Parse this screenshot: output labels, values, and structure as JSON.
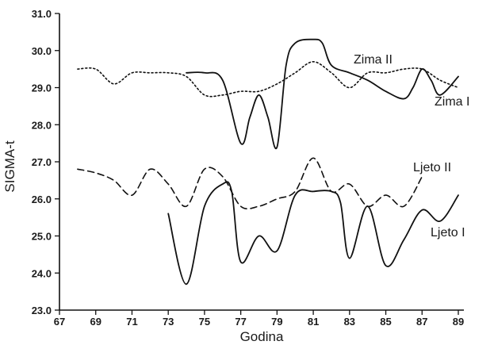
{
  "chart_data": {
    "type": "line",
    "xlabel": "Godina",
    "ylabel": "SIGMA-t",
    "xlim": [
      67,
      89
    ],
    "ylim": [
      23.0,
      31.0
    ],
    "x_ticks": [
      "67",
      "69",
      "71",
      "73",
      "75",
      "77",
      "79",
      "81",
      "83",
      "85",
      "87",
      "89"
    ],
    "y_ticks": [
      "23.0",
      "24.0",
      "25.0",
      "26.0",
      "27.0",
      "28.0",
      "29.0",
      "30.0",
      "31.0"
    ],
    "grid": false,
    "legend": "labels placed next to lines",
    "series": [
      {
        "name": "Zima II",
        "style": "dotted",
        "x": [
          68,
          69,
          70,
          71,
          72,
          73,
          74,
          75,
          76,
          77,
          78,
          79,
          80,
          81,
          82,
          83,
          84,
          85,
          86,
          87,
          88,
          89
        ],
        "y": [
          29.5,
          29.5,
          29.1,
          29.4,
          29.4,
          29.4,
          29.3,
          28.8,
          28.8,
          28.9,
          28.9,
          29.1,
          29.4,
          29.7,
          29.4,
          29.0,
          29.4,
          29.4,
          29.5,
          29.5,
          29.2,
          29.0
        ]
      },
      {
        "name": "Zima I",
        "style": "solid",
        "x": [
          74,
          75,
          76,
          77,
          77.5,
          78,
          78.5,
          79,
          79.5,
          80,
          81,
          81.5,
          82,
          83,
          84,
          85,
          86,
          86.5,
          87,
          87.5,
          88,
          89
        ],
        "y": [
          29.4,
          29.4,
          29.2,
          27.5,
          28.2,
          28.8,
          28.2,
          27.4,
          29.6,
          30.2,
          30.3,
          30.2,
          29.6,
          29.4,
          29.2,
          28.9,
          28.7,
          29.0,
          29.5,
          29.2,
          28.8,
          29.3
        ]
      },
      {
        "name": "Ljeto II",
        "style": "dashed",
        "x": [
          68,
          69,
          70,
          71,
          72,
          73,
          74,
          75,
          76,
          77,
          78,
          79,
          80,
          81,
          82,
          83,
          84,
          85,
          86,
          87
        ],
        "y": [
          26.8,
          26.7,
          26.5,
          26.1,
          26.8,
          26.4,
          25.8,
          26.8,
          26.6,
          25.8,
          25.8,
          26.0,
          26.2,
          27.1,
          26.2,
          26.4,
          25.8,
          26.1,
          25.8,
          26.6
        ]
      },
      {
        "name": "Ljeto I",
        "style": "solid",
        "x": [
          73,
          74,
          75,
          76,
          76.5,
          77,
          78,
          79,
          80,
          81,
          82,
          82.5,
          83,
          84,
          85,
          86,
          87,
          88,
          89
        ],
        "y": [
          25.6,
          23.7,
          25.8,
          26.4,
          26.2,
          24.3,
          25.0,
          24.6,
          26.1,
          26.2,
          26.2,
          25.9,
          24.4,
          25.8,
          24.2,
          24.9,
          25.7,
          25.4,
          26.1
        ]
      }
    ]
  }
}
